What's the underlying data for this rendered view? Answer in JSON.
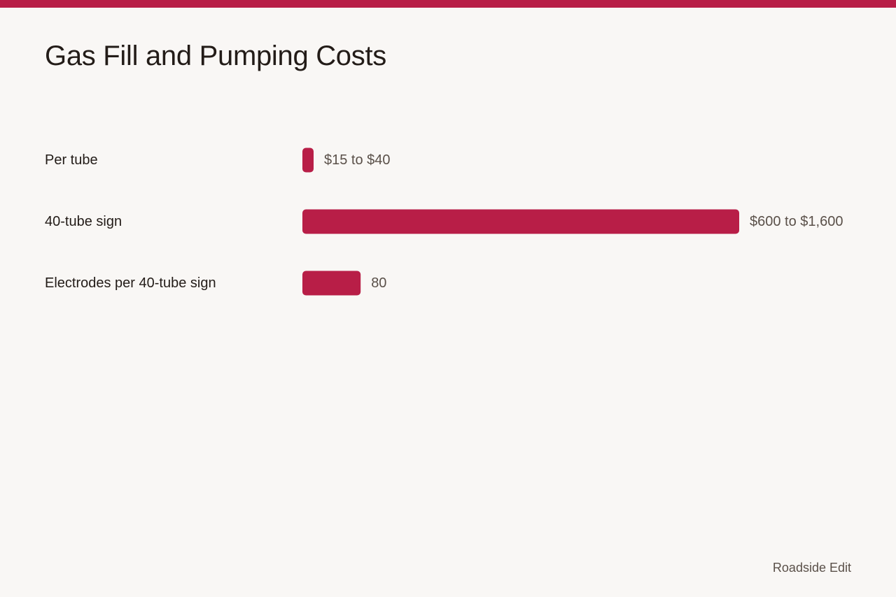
{
  "colors": {
    "accent": "#b81e47",
    "background": "#f9f7f5",
    "text": "#231c18",
    "muted_text": "#5a5049"
  },
  "chart_data": {
    "type": "bar",
    "orientation": "horizontal",
    "title": "Gas Fill and Pumping Costs",
    "categories": [
      "Per tube",
      "40-tube sign",
      "Electrodes per 40-tube sign"
    ],
    "values": [
      15,
      600,
      80
    ],
    "value_labels": [
      "$15 to $40",
      "$600 to $1,600",
      "80"
    ],
    "xlim": [
      0,
      600
    ],
    "grid": false,
    "legend": "none"
  },
  "footer": {
    "credit": "Roadside Edit"
  }
}
